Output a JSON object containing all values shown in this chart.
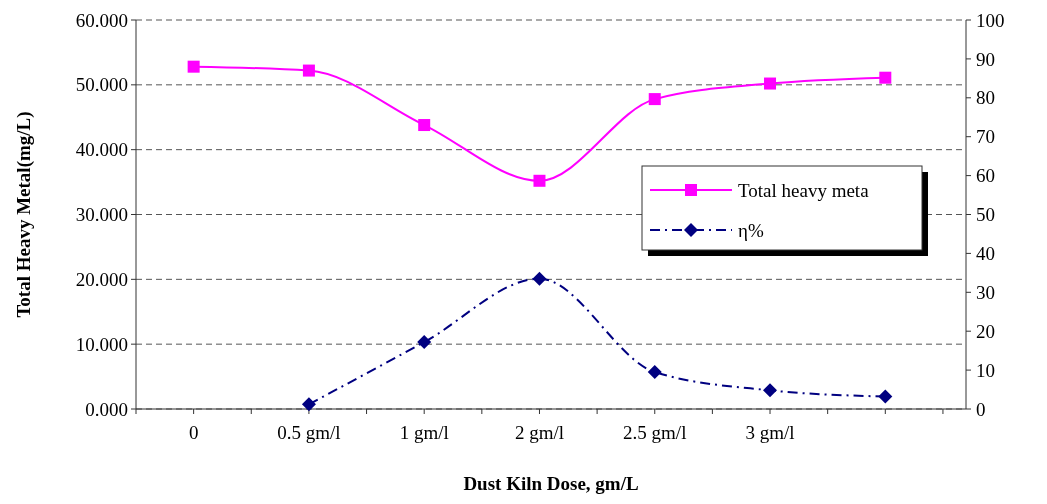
{
  "chart_data": {
    "type": "line",
    "xlabel": "Dust Kiln Dose, gm/L",
    "ylabel": "Total Heavy Metal(mg/L)",
    "categories": [
      "0",
      "0.5 gm/l",
      "1 gm/l",
      "2 gm/l",
      "2.5 gm/l",
      "3 gm/l",
      null
    ],
    "series": [
      {
        "name": "Total heavy meta",
        "color": "#ff00ff",
        "marker": "square",
        "line_style": "solid",
        "values": [
          52.8,
          52.2,
          43.8,
          35.2,
          47.8,
          50.2,
          51.1
        ]
      },
      {
        "name": "η%",
        "color": "#000080",
        "marker": "diamond",
        "line_style": "dashed",
        "axis": "y2",
        "values": [
          null,
          1.2,
          17.2,
          33.5,
          9.5,
          4.8,
          3.2
        ]
      }
    ],
    "ylim": [
      0,
      60
    ],
    "yticks": [
      {
        "value": 0,
        "label": "0.000"
      },
      {
        "value": 10,
        "label": "10.000"
      },
      {
        "value": 20,
        "label": "20.000"
      },
      {
        "value": 30,
        "label": "30.000"
      },
      {
        "value": 40,
        "label": "40.000"
      },
      {
        "value": 50,
        "label": "50.000"
      },
      {
        "value": 60,
        "label": "60.000"
      }
    ],
    "y2lim": [
      0,
      100
    ],
    "y2ticks": [
      0,
      10,
      20,
      30,
      40,
      50,
      60,
      70,
      80,
      90,
      100
    ],
    "grid": "y",
    "legend": "right"
  }
}
